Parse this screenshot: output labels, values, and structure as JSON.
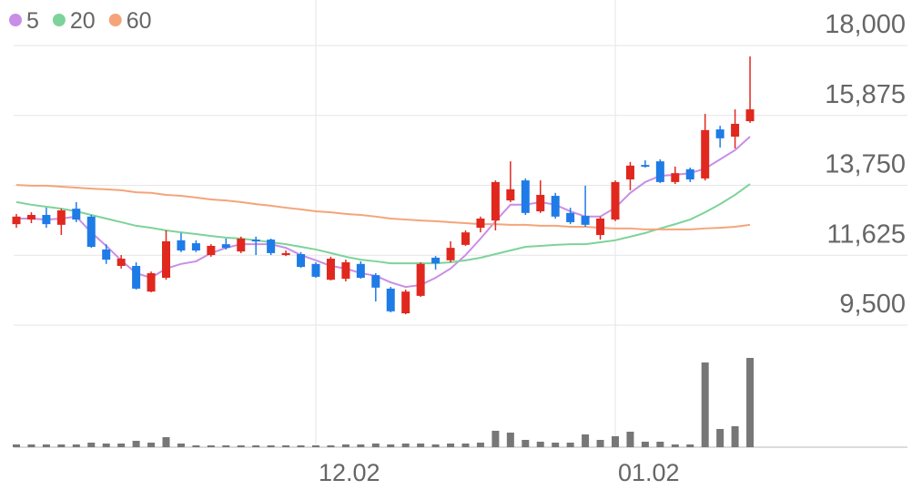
{
  "chart_data": {
    "type": "candlestick",
    "categories": [
      null,
      null,
      null,
      null,
      null,
      null,
      null,
      null,
      null,
      null,
      null,
      null,
      null,
      null,
      null,
      null,
      null,
      null,
      null,
      null,
      "12.02",
      null,
      null,
      null,
      null,
      null,
      null,
      null,
      null,
      null,
      null,
      null,
      null,
      null,
      null,
      null,
      null,
      null,
      null,
      null,
      "01.02",
      null,
      null,
      null,
      null,
      null,
      null,
      null,
      null,
      null
    ],
    "open": [
      12570,
      12710,
      12850,
      12550,
      13040,
      12800,
      11800,
      11300,
      11300,
      10520,
      10940,
      12080,
      11990,
      11630,
      11960,
      11740,
      12100,
      12100,
      11630,
      11660,
      11360,
      10880,
      10910,
      11360,
      11020,
      10610,
      9860,
      10390,
      11550,
      11470,
      11940,
      12460,
      12680,
      13290,
      13900,
      12960,
      13430,
      12910,
      12820,
      12240,
      12710,
      13930,
      14370,
      14480,
      13850,
      14240,
      13960,
      15450,
      15230,
      15700
    ],
    "high": [
      12880,
      12930,
      13070,
      13040,
      13240,
      12850,
      11960,
      11630,
      11410,
      11130,
      12380,
      12300,
      12080,
      11960,
      12130,
      12190,
      12190,
      12130,
      11770,
      11720,
      11410,
      11580,
      11490,
      11440,
      11080,
      10660,
      10580,
      11410,
      11600,
      12050,
      12380,
      12800,
      13900,
      14480,
      13960,
      13900,
      13520,
      13070,
      13740,
      12800,
      13900,
      14460,
      14510,
      14540,
      14320,
      14290,
      15920,
      15560,
      16060,
      17670
    ],
    "low": [
      12460,
      12600,
      12460,
      12240,
      12630,
      11850,
      11360,
      11220,
      10580,
      10500,
      10880,
      11720,
      11720,
      11580,
      11800,
      11690,
      11630,
      11630,
      11600,
      11240,
      10940,
      10860,
      10830,
      10910,
      10220,
      9890,
      9830,
      10360,
      11190,
      11410,
      11910,
      12320,
      12380,
      13240,
      12850,
      12910,
      12740,
      12570,
      12490,
      12100,
      12660,
      13600,
      14290,
      13820,
      13790,
      13850,
      13900,
      14900,
      14870,
      15650
    ],
    "close": [
      12800,
      12850,
      12570,
      12990,
      12710,
      11880,
      11490,
      11520,
      10610,
      11080,
      12050,
      11770,
      11770,
      11910,
      11850,
      12130,
      12050,
      11690,
      11690,
      11270,
      10970,
      11520,
      11410,
      10940,
      10640,
      9920,
      10520,
      11360,
      11380,
      11850,
      12320,
      12740,
      13850,
      13630,
      12910,
      13460,
      12800,
      12630,
      12550,
      12740,
      13850,
      14350,
      14320,
      13850,
      14120,
      13930,
      15430,
      15180,
      15620,
      16060
    ],
    "volume": [
      3,
      3,
      3,
      3,
      3,
      5,
      4,
      4,
      7,
      5,
      11,
      4,
      2,
      2,
      2,
      2,
      2,
      2,
      2,
      2,
      2,
      2,
      3,
      3,
      4,
      3,
      4,
      4,
      3,
      4,
      4,
      5,
      18,
      16,
      8,
      6,
      5,
      5,
      14,
      8,
      12,
      17,
      6,
      6,
      3,
      3,
      93,
      20,
      23,
      98
    ],
    "up_color": "#e0281e",
    "down_color": "#1f7be6",
    "volume_color": "#777777",
    "series": [
      {
        "name": "5",
        "color": "#c98ee6",
        "values": [
          12740,
          12740,
          12710,
          12740,
          12800,
          12320,
          11910,
          11470,
          11080,
          10940,
          11220,
          11360,
          11440,
          11690,
          11850,
          11960,
          11960,
          11960,
          11850,
          11630,
          11470,
          11300,
          11220,
          11080,
          11000,
          10800,
          10660,
          10720,
          10940,
          11220,
          11630,
          12130,
          12660,
          13160,
          13160,
          13240,
          13160,
          12960,
          12800,
          12800,
          13070,
          13520,
          13850,
          14040,
          14070,
          14120,
          14260,
          14540,
          14820,
          15230
        ]
      },
      {
        "name": "20",
        "color": "#7dd39a",
        "values": [
          13240,
          13160,
          13100,
          13040,
          12960,
          12850,
          12740,
          12630,
          12520,
          12460,
          12380,
          12320,
          12270,
          12210,
          12160,
          12130,
          12080,
          12020,
          11960,
          11880,
          11800,
          11690,
          11580,
          11490,
          11440,
          11380,
          11380,
          11380,
          11380,
          11410,
          11470,
          11550,
          11660,
          11770,
          11880,
          11910,
          11940,
          11960,
          11960,
          12020,
          12080,
          12190,
          12300,
          12440,
          12570,
          12710,
          12930,
          13180,
          13460,
          13790
        ]
      },
      {
        "name": "60",
        "color": "#f5a47a",
        "values": [
          13760,
          13740,
          13740,
          13710,
          13680,
          13650,
          13630,
          13600,
          13540,
          13520,
          13460,
          13430,
          13380,
          13320,
          13290,
          13240,
          13180,
          13130,
          13070,
          13020,
          12960,
          12930,
          12880,
          12850,
          12800,
          12740,
          12710,
          12680,
          12660,
          12630,
          12600,
          12570,
          12570,
          12550,
          12550,
          12520,
          12520,
          12490,
          12490,
          12460,
          12440,
          12440,
          12410,
          12410,
          12410,
          12410,
          12440,
          12460,
          12490,
          12550
        ]
      }
    ],
    "ylim": [
      9500,
      18000
    ],
    "yticks": [
      {
        "value": 9500,
        "label": "9,500"
      },
      {
        "value": 11625,
        "label": "11,625"
      },
      {
        "value": 13750,
        "label": "13,750"
      },
      {
        "value": 15875,
        "label": "15,875"
      },
      {
        "value": 18000,
        "label": "18,000"
      }
    ],
    "grid": true
  }
}
